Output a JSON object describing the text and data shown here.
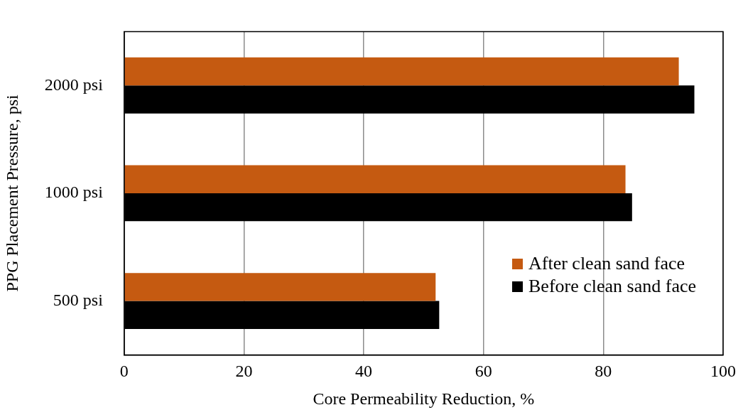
{
  "chart_data": {
    "type": "bar",
    "orientation": "horizontal",
    "xlabel": "Core Permeability Reduction, %",
    "ylabel": "PPG Placement Pressure, psi",
    "categories": [
      "2000 psi",
      "1000 psi",
      "500 psi"
    ],
    "series": [
      {
        "name": "After clean sand face",
        "color": "#c55a11",
        "values": [
          92.6,
          83.7,
          52.0
        ]
      },
      {
        "name": "Before clean sand face",
        "color": "#000000",
        "values": [
          95.2,
          84.8,
          52.6
        ]
      }
    ],
    "xlim": [
      0,
      100
    ],
    "xticks": [
      0,
      20,
      40,
      60,
      80,
      100
    ],
    "grid": "x",
    "legend": "bottom right"
  }
}
